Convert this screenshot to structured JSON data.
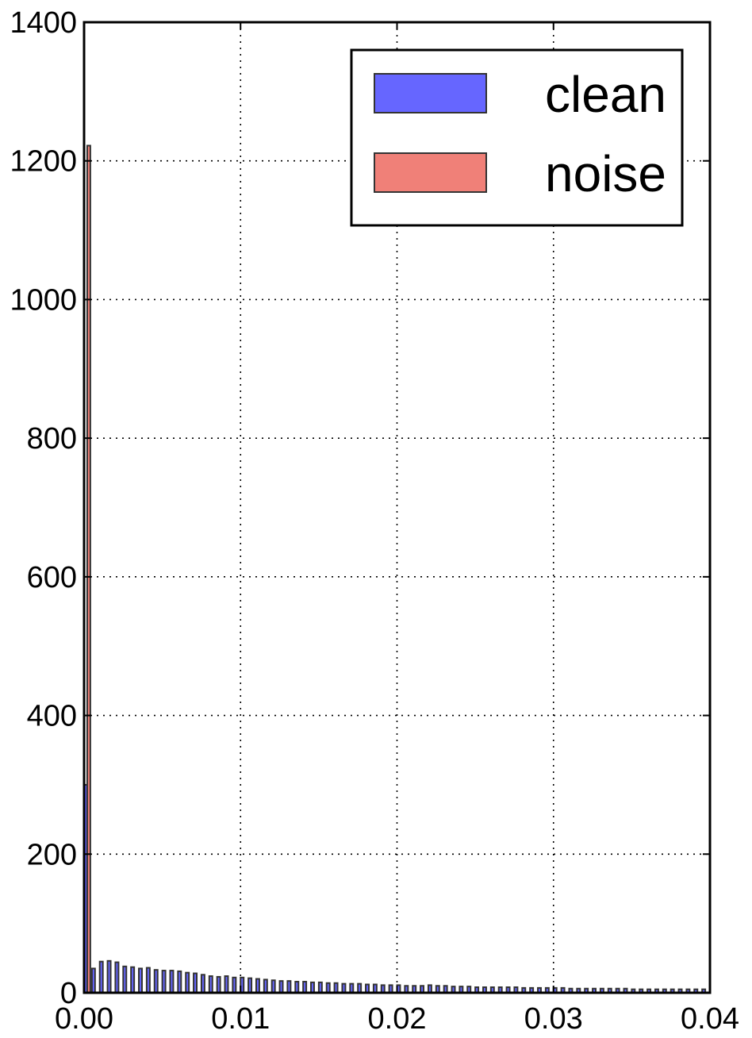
{
  "chart_data": {
    "type": "bar",
    "title": "",
    "xlabel": "",
    "ylabel": "",
    "xlim": [
      0.0,
      0.04
    ],
    "ylim": [
      0,
      1400
    ],
    "x_ticks": [
      "0.00",
      "0.01",
      "0.02",
      "0.03",
      "0.04"
    ],
    "y_ticks": [
      "0",
      "200",
      "400",
      "600",
      "800",
      "1000",
      "1200",
      "1400"
    ],
    "grid": true,
    "legend_position": "top-right",
    "bin_width": 0.0005,
    "series": [
      {
        "name": "clean",
        "color": "#6666ff",
        "x": [
          0.00025,
          0.00075,
          0.00125,
          0.00175,
          0.00225,
          0.00275,
          0.00325,
          0.00375,
          0.00425,
          0.00475,
          0.00525,
          0.00575,
          0.00625,
          0.00675,
          0.00725,
          0.00775,
          0.00825,
          0.00875,
          0.00925,
          0.00975,
          0.01025,
          0.01075,
          0.01125,
          0.01175,
          0.01225,
          0.01275,
          0.01325,
          0.01375,
          0.01425,
          0.01475,
          0.01525,
          0.01575,
          0.01625,
          0.01675,
          0.01725,
          0.01775,
          0.01825,
          0.01875,
          0.01925,
          0.01975,
          0.02025,
          0.02075,
          0.02125,
          0.02175,
          0.02225,
          0.02275,
          0.02325,
          0.02375,
          0.02425,
          0.02475,
          0.02525,
          0.02575,
          0.02625,
          0.02675,
          0.02725,
          0.02775,
          0.02825,
          0.02875,
          0.02925,
          0.02975,
          0.03025,
          0.03075,
          0.03125,
          0.03175,
          0.03225,
          0.03275,
          0.03325,
          0.03375,
          0.03425,
          0.03475,
          0.03525,
          0.03575,
          0.03625,
          0.03675,
          0.03725,
          0.03775,
          0.03825,
          0.03875,
          0.03925,
          0.03975
        ],
        "values": [
          300,
          35,
          45,
          46,
          44,
          38,
          37,
          35,
          36,
          33,
          32,
          32,
          31,
          29,
          28,
          26,
          24,
          23,
          24,
          22,
          22,
          21,
          20,
          19,
          18,
          17,
          17,
          16,
          16,
          15,
          15,
          14,
          14,
          13,
          13,
          13,
          12,
          12,
          11,
          11,
          11,
          10,
          10,
          10,
          11,
          10,
          10,
          9,
          9,
          9,
          8,
          8,
          8,
          8,
          8,
          8,
          7,
          7,
          7,
          7,
          7,
          7,
          6,
          6,
          6,
          6,
          6,
          6,
          6,
          6,
          5,
          5,
          5,
          5,
          5,
          5,
          5,
          5,
          5,
          5
        ]
      },
      {
        "name": "noise",
        "color": "#f08078",
        "x": [
          0.00025
        ],
        "values": [
          1222
        ]
      }
    ]
  }
}
